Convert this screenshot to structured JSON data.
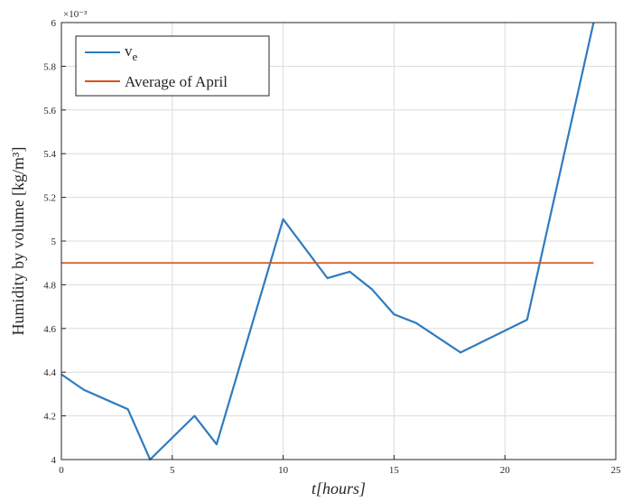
{
  "chart_data": {
    "type": "line",
    "xlabel": "t[hours]",
    "ylabel": "Humidity by volume [kg/m³]",
    "y_exponent": "×10⁻³",
    "xlim": [
      0,
      25
    ],
    "ylim": [
      4.0,
      6.0
    ],
    "x_ticks": [
      0,
      5,
      10,
      15,
      20,
      25
    ],
    "x_tick_labels": [
      "0",
      "5",
      "10",
      "15",
      "20",
      "25"
    ],
    "y_ticks": [
      4.0,
      4.2,
      4.4,
      4.6,
      4.8,
      5.0,
      5.2,
      5.4,
      5.6,
      5.8,
      6.0
    ],
    "y_tick_labels": [
      "4",
      "4.2",
      "4.4",
      "4.6",
      "4.8",
      "5",
      "5.2",
      "5.4",
      "5.6",
      "5.8",
      "6"
    ],
    "grid": true,
    "legend_position": "top-left",
    "series": [
      {
        "name": "v",
        "name_subscript": "e",
        "color": "#2f7bbf",
        "x": [
          0,
          1,
          3,
          4,
          6,
          7,
          10,
          12,
          13,
          14,
          15,
          16,
          18,
          21,
          24
        ],
        "y": [
          4.39,
          4.32,
          4.23,
          4.0,
          4.2,
          4.07,
          5.1,
          4.83,
          4.86,
          4.78,
          4.665,
          4.625,
          4.49,
          4.64,
          6.0
        ]
      },
      {
        "name": "Average of April",
        "color": "#d95319",
        "x": [
          0,
          24
        ],
        "y": [
          4.9,
          4.9
        ]
      }
    ]
  }
}
